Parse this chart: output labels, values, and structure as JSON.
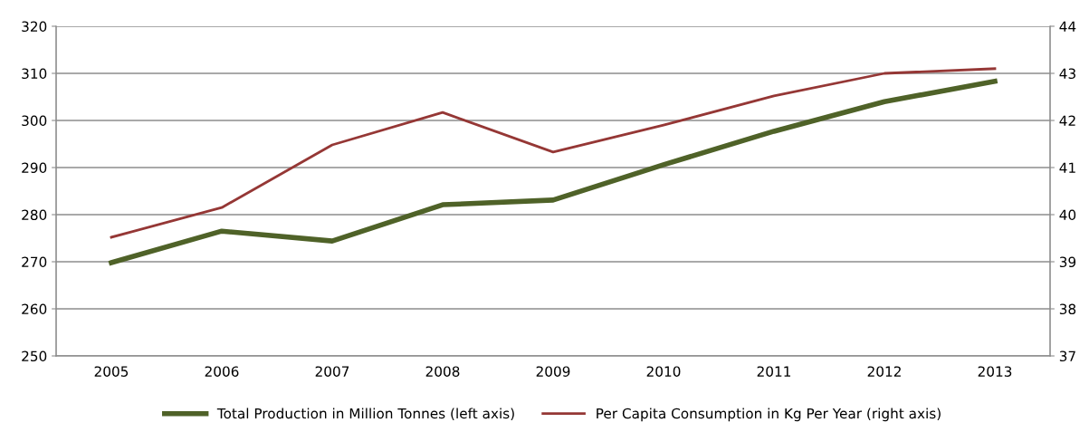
{
  "chart_data": {
    "type": "line",
    "categories": [
      "2005",
      "2006",
      "2007",
      "2008",
      "2009",
      "2010",
      "2011",
      "2012",
      "2013"
    ],
    "series": [
      {
        "name": "Total Production in Million Tonnes (left axis)",
        "color": "#4f6228",
        "values": [
          269.8,
          276.5,
          274.4,
          282.1,
          283.1,
          290.6,
          297.7,
          304.0,
          308.3
        ]
      },
      {
        "name": "Per Capita Consumption in Kg Per Year (right axis)",
        "color": "#953735",
        "axis": "y2",
        "values": [
          39.52,
          40.15,
          41.48,
          42.17,
          41.33,
          41.9,
          42.52,
          43.0,
          43.1
        ]
      }
    ],
    "ylim": [
      250,
      320
    ],
    "yticks": [
      250,
      260,
      270,
      280,
      290,
      300,
      310,
      320
    ],
    "y2lim": [
      37,
      44
    ],
    "y2ticks": [
      37,
      38,
      39,
      40,
      41,
      42,
      43,
      44
    ],
    "grid": "y",
    "legend": "bottom",
    "marker": "none"
  }
}
